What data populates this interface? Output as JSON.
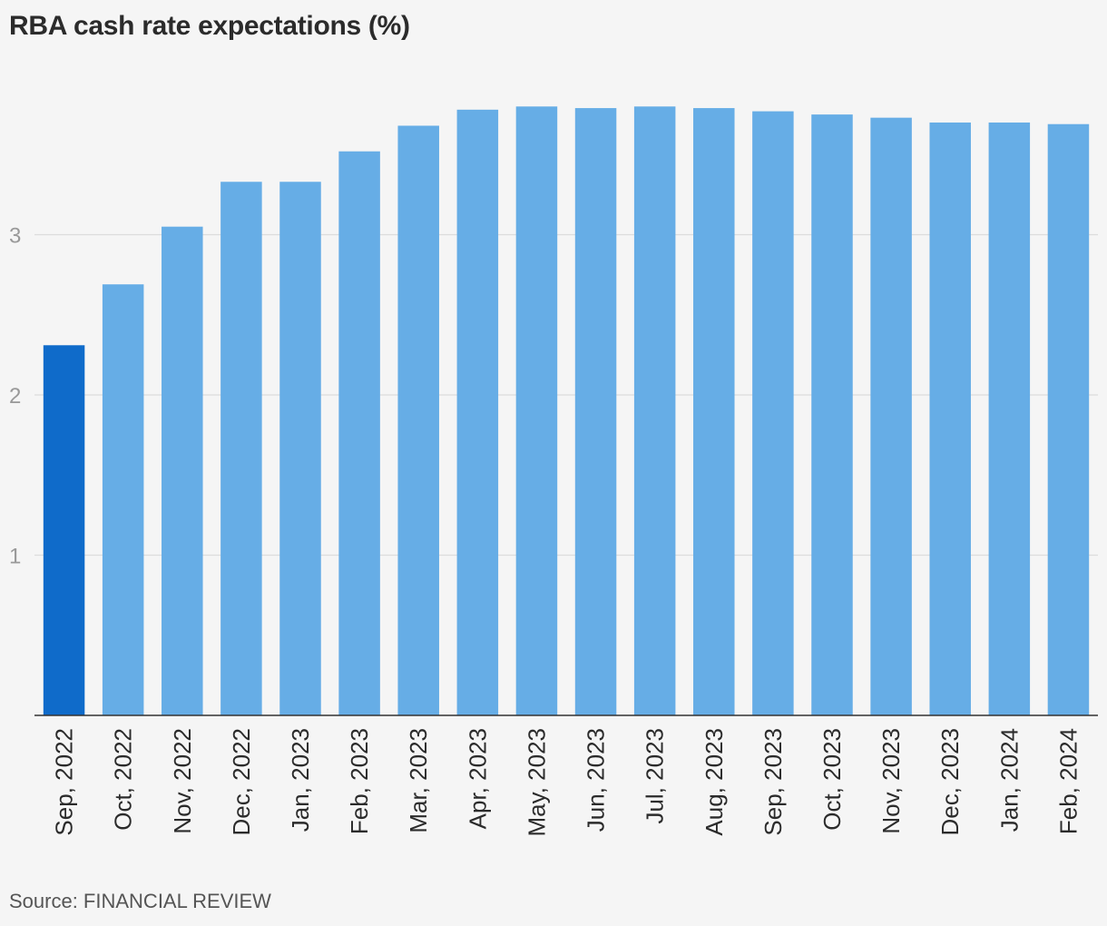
{
  "chart_data": {
    "type": "bar",
    "title": "RBA cash rate expectations (%)",
    "source": "Source: FINANCIAL REVIEW",
    "xlabel": "",
    "ylabel": "",
    "categories": [
      "Sep, 2022",
      "Oct, 2022",
      "Nov, 2022",
      "Dec, 2022",
      "Jan, 2023",
      "Feb, 2023",
      "Mar, 2023",
      "Apr, 2023",
      "May, 2023",
      "Jun, 2023",
      "Jul, 2023",
      "Aug, 2023",
      "Sep, 2023",
      "Oct, 2023",
      "Nov, 2023",
      "Dec, 2023",
      "Jan, 2024",
      "Feb, 2024"
    ],
    "values": [
      2.31,
      2.69,
      3.05,
      3.33,
      3.33,
      3.52,
      3.68,
      3.78,
      3.8,
      3.79,
      3.8,
      3.79,
      3.77,
      3.75,
      3.73,
      3.7,
      3.7,
      3.69
    ],
    "ylim": [
      0,
      4
    ],
    "yticks": [
      "1",
      "2",
      "3"
    ],
    "grid": true,
    "highlight_index": 0,
    "colors": {
      "highlight": "#0f6bca",
      "bar": "#66ade6",
      "grid": "#dcdcdc",
      "axis": "#333333",
      "tick_text": "#999999",
      "label_text": "#2b2b2b"
    }
  }
}
